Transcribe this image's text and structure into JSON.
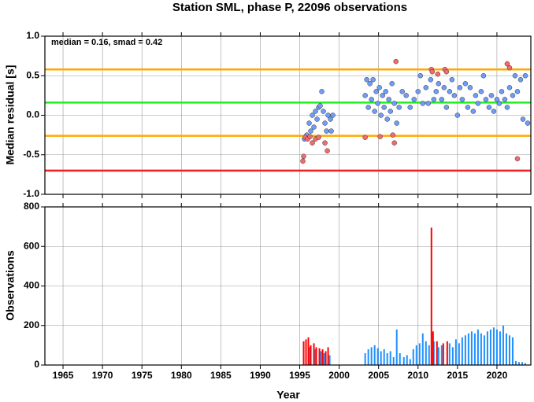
{
  "chart_data": [
    {
      "type": "scatter",
      "title": "Station SML, phase P, 22096 observations",
      "annotation": "median = 0.16, smad = 0.42",
      "ylabel": "Median residual [s]",
      "xlim": [
        1962.7,
        2024.3
      ],
      "xticks": [
        1965,
        1970,
        1975,
        1980,
        1985,
        1990,
        1995,
        2000,
        2005,
        2010,
        2015,
        2020
      ],
      "ylim": [
        -1,
        1
      ],
      "yticks": [
        {
          "value": -1,
          "label": "-1.0"
        },
        -0.5,
        {
          "value": 0,
          "label": "0.0"
        },
        0.5,
        {
          "value": 1,
          "label": "1.0"
        }
      ],
      "grid": true,
      "hlines": [
        {
          "value": 0.58,
          "color": "#ffaa00"
        },
        {
          "value": 0.16,
          "color": "#22ee22"
        },
        {
          "value": -0.26,
          "color": "#ffaa00"
        },
        {
          "value": -0.7,
          "color": "#ee2222"
        }
      ],
      "series": [
        {
          "color": "#6f9cf5",
          "x": [
            1995.6,
            1995.9,
            1996.2,
            1996.4,
            1996.6,
            1996.8,
            1997.0,
            1997.2,
            1997.4,
            1997.6,
            1997.8,
            1998.0,
            1998.2,
            1998.4,
            1998.6,
            1998.9,
            1999.0,
            1999.2,
            2003.3,
            2003.5,
            2003.7,
            2003.9,
            2004.1,
            2004.3,
            2004.5,
            2004.7,
            2004.9,
            2005.1,
            2005.3,
            2005.5,
            2005.7,
            2005.9,
            2006.1,
            2006.3,
            2006.5,
            2006.7,
            2007.0,
            2007.3,
            2007.6,
            2008.0,
            2008.5,
            2009.0,
            2009.5,
            2010.0,
            2010.3,
            2010.6,
            2011.0,
            2011.3,
            2011.6,
            2012.0,
            2012.3,
            2012.6,
            2013.0,
            2013.3,
            2013.6,
            2014.0,
            2014.3,
            2014.6,
            2015.0,
            2015.3,
            2015.6,
            2016.0,
            2016.3,
            2016.6,
            2017.0,
            2017.3,
            2017.6,
            2018.0,
            2018.3,
            2018.6,
            2019.0,
            2019.3,
            2019.6,
            2020.0,
            2020.3,
            2020.6,
            2021.0,
            2021.3,
            2021.6,
            2022.0,
            2022.3,
            2022.6,
            2023.0,
            2023.3,
            2023.6,
            2023.9
          ],
          "values": [
            -0.3,
            -0.25,
            -0.1,
            -0.2,
            0.0,
            -0.15,
            0.05,
            -0.05,
            0.1,
            0.12,
            0.3,
            0.05,
            -0.1,
            -0.2,
            0.0,
            -0.05,
            -0.2,
            0.0,
            0.25,
            0.45,
            0.1,
            0.4,
            0.2,
            0.45,
            0.05,
            0.3,
            0.15,
            0.35,
            0.0,
            0.25,
            0.1,
            0.3,
            -0.05,
            0.2,
            0.05,
            0.4,
            0.15,
            -0.1,
            0.1,
            0.3,
            0.25,
            0.1,
            0.2,
            0.3,
            0.5,
            0.15,
            0.35,
            0.15,
            0.45,
            0.2,
            0.3,
            0.4,
            0.2,
            0.35,
            0.1,
            0.3,
            0.45,
            0.25,
            0.0,
            0.35,
            0.2,
            0.4,
            0.1,
            0.35,
            0.05,
            0.25,
            0.15,
            0.3,
            0.5,
            0.2,
            0.1,
            0.25,
            0.05,
            0.2,
            0.15,
            0.3,
            0.2,
            0.1,
            0.35,
            0.25,
            0.5,
            0.3,
            0.45,
            -0.05,
            0.5,
            -0.1
          ]
        },
        {
          "color": "#f46a6a",
          "x": [
            1995.4,
            1995.5,
            1995.7,
            1996.0,
            1996.3,
            1996.6,
            1997.0,
            1997.4,
            1998.2,
            1998.5,
            2003.3,
            2005.2,
            2006.8,
            2007.0,
            2007.2,
            2011.7,
            2011.8,
            2012.5,
            2013.4,
            2013.6,
            2021.3,
            2021.6,
            2022.6
          ],
          "values": [
            -0.58,
            -0.52,
            -0.28,
            -0.3,
            -0.27,
            -0.35,
            -0.3,
            -0.28,
            -0.35,
            -0.45,
            -0.28,
            -0.27,
            -0.25,
            -0.35,
            0.68,
            0.58,
            0.55,
            0.52,
            0.58,
            0.55,
            0.65,
            0.6,
            -0.55
          ]
        }
      ]
    },
    {
      "type": "bar",
      "xlabel": "Year",
      "ylabel": "Observations",
      "xlim": [
        1962.7,
        2024.3
      ],
      "xticks": [
        1965,
        1970,
        1975,
        1980,
        1985,
        1990,
        1995,
        2000,
        2005,
        2010,
        2015,
        2020
      ],
      "ylim": [
        0,
        800
      ],
      "yticks": [
        0,
        200,
        400,
        600,
        800
      ],
      "grid": true,
      "series": [
        {
          "color": "#1e90ff",
          "x": [
            1996.3,
            1997.0,
            1997.7,
            1998.1,
            1998.8,
            2003.3,
            2003.7,
            2004.1,
            2004.5,
            2004.9,
            2005.3,
            2005.7,
            2006.1,
            2006.5,
            2006.9,
            2007.3,
            2007.7,
            2008.2,
            2008.6,
            2009.0,
            2009.4,
            2009.8,
            2010.2,
            2010.6,
            2011.0,
            2011.4,
            2012.0,
            2012.6,
            2013.0,
            2014.0,
            2014.4,
            2014.8,
            2015.2,
            2015.6,
            2016.0,
            2016.4,
            2016.8,
            2017.2,
            2017.6,
            2018.0,
            2018.4,
            2018.8,
            2019.2,
            2019.6,
            2020.0,
            2020.4,
            2020.8,
            2021.2,
            2021.6,
            2022.0,
            2022.4,
            2022.8,
            2023.2,
            2023.6
          ],
          "values": [
            90,
            80,
            70,
            60,
            50,
            60,
            80,
            90,
            100,
            85,
            70,
            80,
            60,
            70,
            40,
            180,
            60,
            40,
            50,
            30,
            80,
            100,
            110,
            160,
            120,
            100,
            120,
            90,
            100,
            110,
            90,
            130,
            110,
            140,
            150,
            160,
            170,
            160,
            180,
            160,
            150,
            170,
            180,
            190,
            180,
            170,
            200,
            160,
            150,
            140,
            20,
            15,
            15,
            10
          ]
        },
        {
          "color": "#ff0000",
          "x": [
            1995.5,
            1995.8,
            1996.1,
            1996.4,
            1996.8,
            1997.1,
            1997.5,
            1997.9,
            1998.3,
            1998.6,
            2011.7,
            2011.9,
            2012.4,
            2013.2,
            2013.7
          ],
          "values": [
            120,
            130,
            140,
            100,
            110,
            90,
            85,
            80,
            70,
            90,
            695,
            170,
            120,
            110,
            120
          ]
        }
      ]
    }
  ]
}
